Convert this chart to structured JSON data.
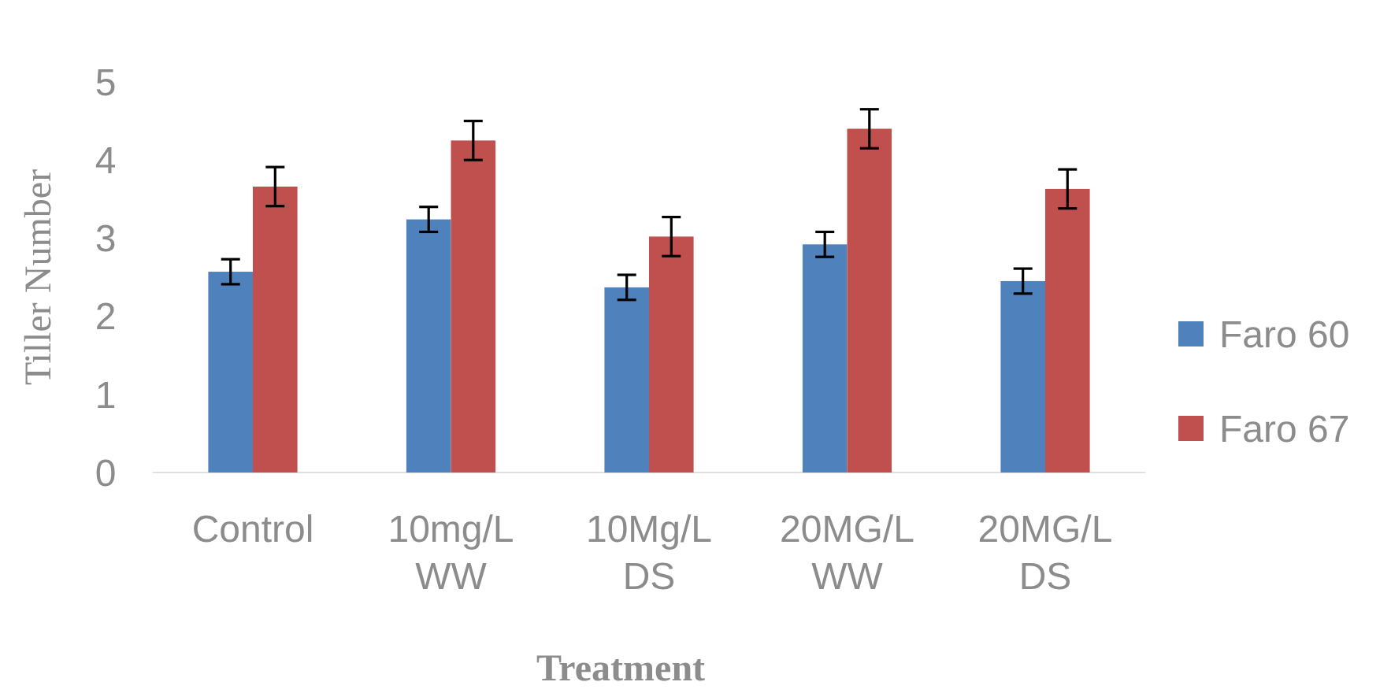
{
  "chart_data": {
    "type": "bar",
    "xlabel": "Treatment",
    "ylabel": "Tiller Number",
    "categories": [
      "Control",
      "10mg/L WW",
      "10Mg/L DS",
      "20MG/L WW",
      "20MG/L DS"
    ],
    "series": [
      {
        "name": "Faro 60",
        "color": "#4f81bd",
        "values": [
          2.57,
          3.24,
          2.37,
          2.92,
          2.45
        ],
        "errors": [
          0.16,
          0.16,
          0.16,
          0.16,
          0.16
        ]
      },
      {
        "name": "Faro 67",
        "color": "#c0504d",
        "values": [
          3.66,
          4.25,
          3.02,
          4.4,
          3.63
        ],
        "errors": [
          0.25,
          0.25,
          0.25,
          0.25,
          0.25
        ]
      }
    ],
    "ylim": [
      0,
      5
    ],
    "yticks": [
      0,
      1,
      2,
      3,
      4,
      5
    ],
    "grid": false,
    "legend": "right"
  }
}
